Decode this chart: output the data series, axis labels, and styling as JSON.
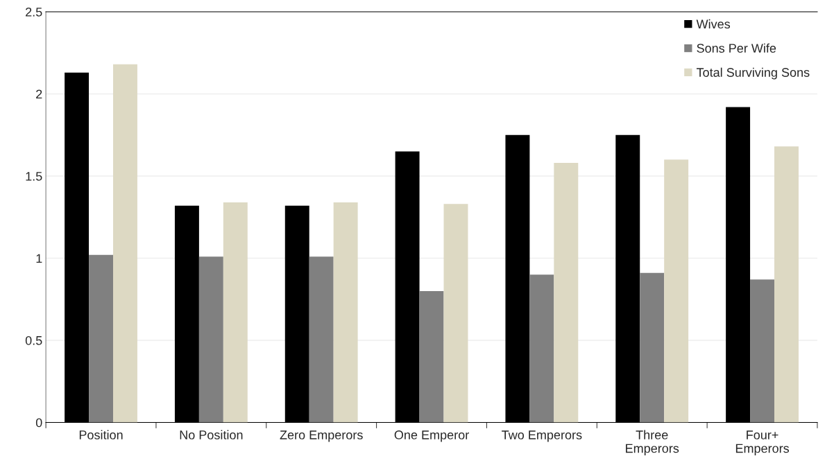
{
  "chart_data": {
    "type": "bar",
    "categories": [
      "Position",
      "No Position",
      "Zero Emperors",
      "One Emperor",
      "Two Emperors",
      "Three\nEmperors",
      "Four+\nEmperors"
    ],
    "series": [
      {
        "name": "Wives",
        "color": "#000000",
        "values": [
          2.13,
          1.32,
          1.32,
          1.65,
          1.75,
          1.75,
          1.92
        ]
      },
      {
        "name": "Sons Per Wife",
        "color": "#808080",
        "values": [
          1.02,
          1.01,
          1.01,
          0.8,
          0.9,
          0.91,
          0.87
        ]
      },
      {
        "name": "Total Surviving Sons",
        "color": "#ddd9c3",
        "values": [
          2.18,
          1.34,
          1.34,
          1.33,
          1.58,
          1.6,
          1.68
        ]
      }
    ],
    "ylim": [
      0,
      2.5
    ],
    "yticks": [
      0,
      0.5,
      1,
      1.5,
      2,
      2.5
    ],
    "grid": "y",
    "legend": "top right"
  }
}
